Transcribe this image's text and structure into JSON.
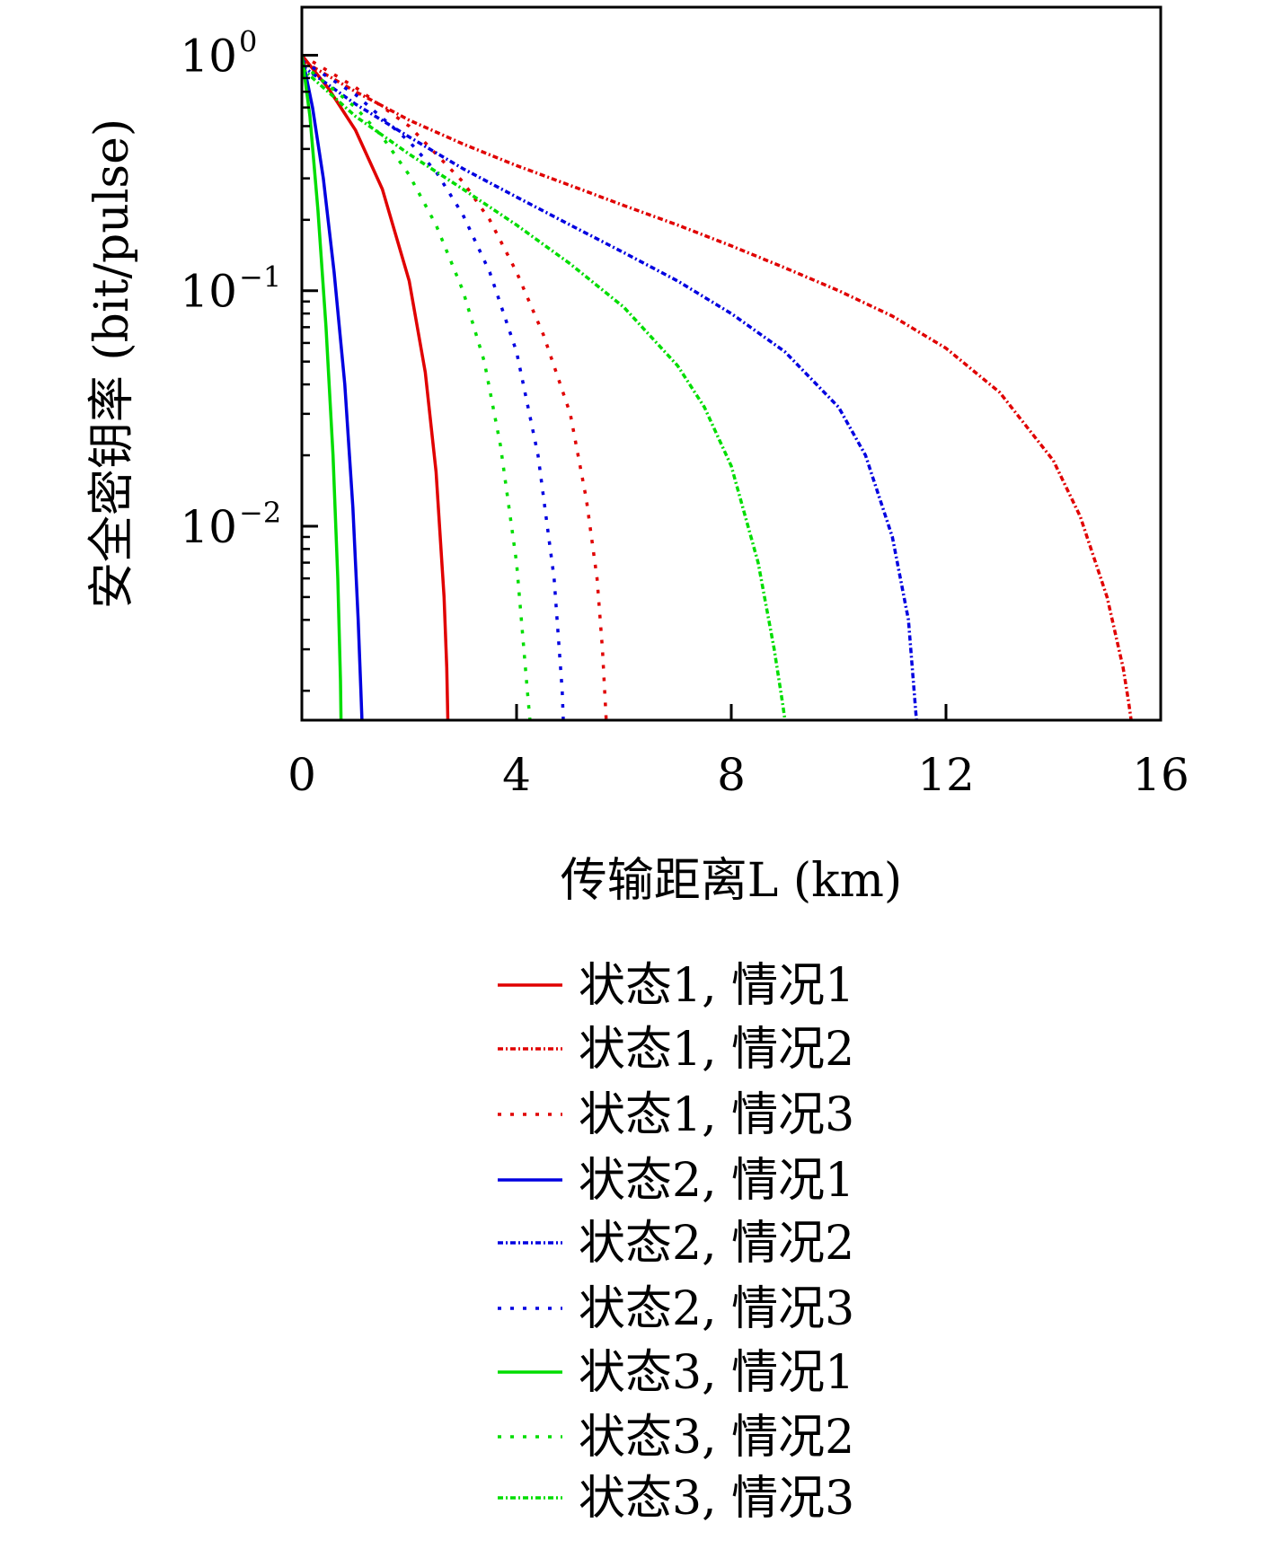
{
  "chart_data": {
    "type": "line",
    "xlabel": "传输距离L (km)",
    "ylabel": "安全密钥率 (bit/pulse)",
    "y_scale": "log",
    "xlim": [
      0,
      16
    ],
    "ylim": [
      0.0015,
      1.6
    ],
    "x_ticks": [
      {
        "value": 0,
        "label": "0"
      },
      {
        "value": 4,
        "label": "4"
      },
      {
        "value": 8,
        "label": "8"
      },
      {
        "value": 12,
        "label": "12"
      },
      {
        "value": 16,
        "label": "16"
      }
    ],
    "y_ticks": [
      {
        "value": 1,
        "base": "10",
        "exp": "0"
      },
      {
        "value": 0.1,
        "base": "10",
        "exp": "−1"
      },
      {
        "value": 0.01,
        "base": "10",
        "exp": "−2"
      }
    ],
    "grid": false,
    "legend_position": "below",
    "series": [
      {
        "name": "状态1, 情况1",
        "color": "#e00000",
        "dash": "solid",
        "x": [
          0,
          0.5,
          1.0,
          1.5,
          2.0,
          2.3,
          2.5,
          2.65,
          2.7,
          2.72
        ],
        "y": [
          1.0,
          0.72,
          0.48,
          0.27,
          0.11,
          0.045,
          0.017,
          0.005,
          0.0025,
          0.0015
        ]
      },
      {
        "name": "状态1, 情况2",
        "color": "#e00000",
        "dash": "dashdot",
        "x": [
          0,
          1,
          2,
          3,
          4,
          5,
          6,
          7,
          8,
          9,
          10,
          11,
          12,
          13,
          14,
          14.5,
          15,
          15.3,
          15.4,
          15.45
        ],
        "y": [
          0.95,
          0.7,
          0.53,
          0.42,
          0.34,
          0.28,
          0.23,
          0.19,
          0.155,
          0.125,
          0.1,
          0.078,
          0.057,
          0.037,
          0.019,
          0.011,
          0.005,
          0.0025,
          0.0018,
          0.0015
        ]
      },
      {
        "name": "状态1, 情况3",
        "color": "#e00000",
        "dash": "dotted",
        "x": [
          0,
          1,
          2,
          3,
          3.5,
          4,
          4.5,
          5,
          5.3,
          5.5,
          5.6,
          5.67
        ],
        "y": [
          1.0,
          0.73,
          0.5,
          0.29,
          0.2,
          0.12,
          0.065,
          0.03,
          0.013,
          0.006,
          0.003,
          0.0015
        ]
      },
      {
        "name": "状态2, 情况1",
        "color": "#0000e0",
        "dash": "solid",
        "x": [
          0,
          0.2,
          0.4,
          0.6,
          0.8,
          0.95,
          1.05,
          1.1,
          1.12
        ],
        "y": [
          1.0,
          0.6,
          0.3,
          0.12,
          0.04,
          0.012,
          0.004,
          0.002,
          0.0015
        ]
      },
      {
        "name": "状态2, 情况2",
        "color": "#0000e0",
        "dash": "dashdot",
        "x": [
          0,
          1,
          2,
          3,
          4,
          5,
          6,
          7,
          8,
          9,
          10,
          10.5,
          11,
          11.3,
          11.45
        ],
        "y": [
          0.9,
          0.62,
          0.45,
          0.33,
          0.25,
          0.19,
          0.145,
          0.11,
          0.08,
          0.055,
          0.032,
          0.02,
          0.009,
          0.004,
          0.0015
        ]
      },
      {
        "name": "状态2, 情况3",
        "color": "#0000e0",
        "dash": "dotted",
        "x": [
          0,
          1,
          2,
          2.5,
          3,
          3.5,
          4,
          4.4,
          4.7,
          4.85,
          4.87
        ],
        "y": [
          0.95,
          0.68,
          0.43,
          0.32,
          0.21,
          0.12,
          0.055,
          0.02,
          0.006,
          0.002,
          0.0015
        ]
      },
      {
        "name": "状态3, 情况1",
        "color": "#00dd00",
        "dash": "solid",
        "x": [
          0,
          0.15,
          0.3,
          0.45,
          0.58,
          0.67,
          0.72,
          0.73
        ],
        "y": [
          1.0,
          0.55,
          0.22,
          0.07,
          0.02,
          0.006,
          0.0022,
          0.0015
        ]
      },
      {
        "name": "状态3, 情况2",
        "color": "#00dd00",
        "dash": "dotted",
        "x": [
          0,
          1,
          1.5,
          2,
          2.5,
          3,
          3.4,
          3.7,
          4.0,
          4.2,
          4.25
        ],
        "y": [
          0.92,
          0.6,
          0.45,
          0.31,
          0.19,
          0.1,
          0.05,
          0.022,
          0.007,
          0.002,
          0.0015
        ]
      },
      {
        "name": "状态3, 情况3",
        "color": "#00dd00",
        "dash": "dashdot",
        "x": [
          0,
          1,
          2,
          3,
          4,
          5,
          6,
          7,
          7.5,
          8,
          8.5,
          8.8,
          8.95,
          9.0
        ],
        "y": [
          0.88,
          0.55,
          0.38,
          0.27,
          0.19,
          0.13,
          0.085,
          0.048,
          0.032,
          0.018,
          0.007,
          0.003,
          0.0018,
          0.0015
        ]
      }
    ]
  }
}
